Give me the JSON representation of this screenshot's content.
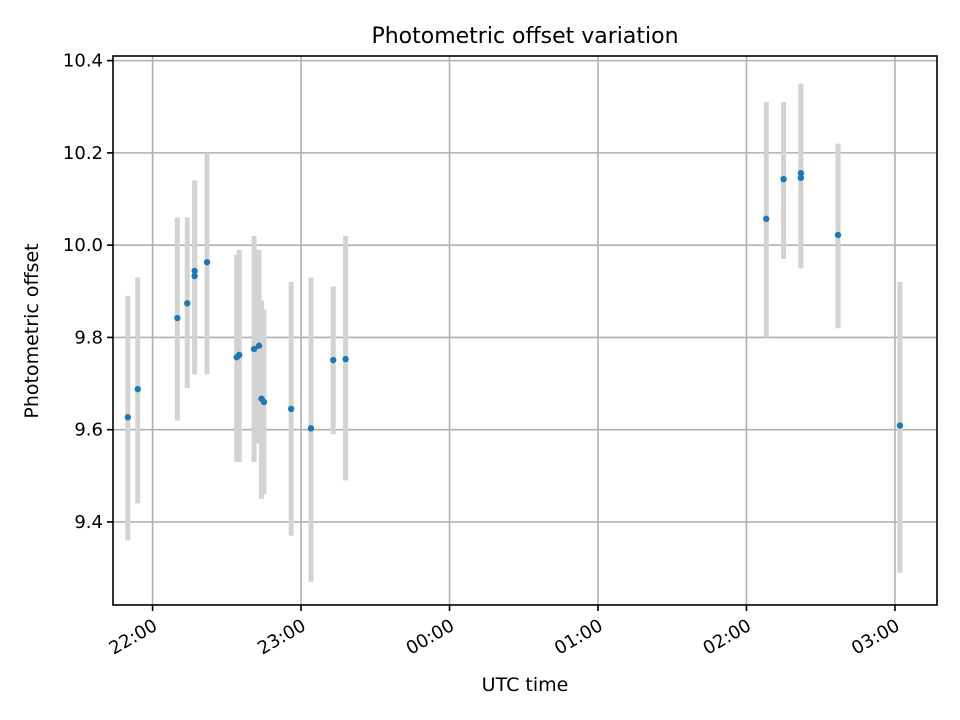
{
  "chart_data": {
    "type": "scatter",
    "title": "Photometric offset variation",
    "xlabel": "UTC time",
    "ylabel": "Photometric offset",
    "x_axis_type": "time",
    "xlim": [
      "21:44",
      "03:17"
    ],
    "ylim": [
      9.22,
      10.41
    ],
    "x_ticks": [
      "22:00",
      "23:00",
      "00:00",
      "01:00",
      "02:00",
      "03:00"
    ],
    "y_ticks": [
      "9.4",
      "9.6",
      "9.8",
      "10.0",
      "10.2",
      "10.4"
    ],
    "grid": true,
    "colors": {
      "point": "#1f77b4",
      "errorbar": "#d3d3d3"
    },
    "series": [
      {
        "points": [
          {
            "x": "21:50",
            "y": 9.627,
            "ymin": 9.36,
            "ymax": 9.89
          },
          {
            "x": "21:54",
            "y": 9.688,
            "ymin": 9.44,
            "ymax": 9.93
          },
          {
            "x": "22:10",
            "y": 9.842,
            "ymin": 9.62,
            "ymax": 10.06
          },
          {
            "x": "22:14",
            "y": 9.874,
            "ymin": 9.69,
            "ymax": 10.06
          },
          {
            "x": "22:17",
            "y": 9.933,
            "ymin": 9.72,
            "ymax": 10.14
          },
          {
            "x": "22:17",
            "y": 9.944,
            "ymin": 9.74,
            "ymax": 10.14
          },
          {
            "x": "22:22",
            "y": 9.963,
            "ymin": 9.72,
            "ymax": 10.2
          },
          {
            "x": "22:34",
            "y": 9.757,
            "ymin": 9.53,
            "ymax": 9.98
          },
          {
            "x": "22:35",
            "y": 9.762,
            "ymin": 9.53,
            "ymax": 9.99
          },
          {
            "x": "22:41",
            "y": 9.775,
            "ymin": 9.53,
            "ymax": 10.02
          },
          {
            "x": "22:43",
            "y": 9.782,
            "ymin": 9.57,
            "ymax": 9.99
          },
          {
            "x": "22:44",
            "y": 9.667,
            "ymin": 9.45,
            "ymax": 9.88
          },
          {
            "x": "22:45",
            "y": 9.66,
            "ymin": 9.46,
            "ymax": 9.86
          },
          {
            "x": "22:56",
            "y": 9.645,
            "ymin": 9.37,
            "ymax": 9.92
          },
          {
            "x": "23:04",
            "y": 9.603,
            "ymin": 9.27,
            "ymax": 9.93
          },
          {
            "x": "23:13",
            "y": 9.751,
            "ymin": 9.59,
            "ymax": 9.91
          },
          {
            "x": "23:18",
            "y": 9.753,
            "ymin": 9.49,
            "ymax": 10.02
          },
          {
            "x": "02:08",
            "y": 10.057,
            "ymin": 9.8,
            "ymax": 10.31
          },
          {
            "x": "02:15",
            "y": 10.143,
            "ymin": 9.97,
            "ymax": 10.31
          },
          {
            "x": "02:22",
            "y": 10.146,
            "ymin": 9.95,
            "ymax": 10.35
          },
          {
            "x": "02:22",
            "y": 10.156,
            "ymin": 9.95,
            "ymax": 10.35
          },
          {
            "x": "02:37",
            "y": 10.022,
            "ymin": 9.82,
            "ymax": 10.22
          },
          {
            "x": "03:02",
            "y": 9.609,
            "ymin": 9.29,
            "ymax": 9.92
          }
        ]
      }
    ]
  }
}
